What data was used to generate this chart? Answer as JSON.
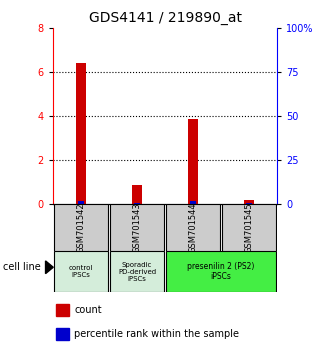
{
  "title": "GDS4141 / 219890_at",
  "samples": [
    "GSM701542",
    "GSM701543",
    "GSM701544",
    "GSM701545"
  ],
  "count_values": [
    6.4,
    0.85,
    3.85,
    0.18
  ],
  "percentile_values": [
    1.3,
    0.35,
    1.25,
    0.12
  ],
  "ylim_left": [
    0,
    8
  ],
  "ylim_right": [
    0,
    100
  ],
  "yticks_left": [
    0,
    2,
    4,
    6,
    8
  ],
  "yticks_right": [
    0,
    25,
    50,
    75,
    100
  ],
  "ytick_labels_right": [
    "0",
    "25",
    "50",
    "75",
    "100%"
  ],
  "count_color": "#cc0000",
  "percentile_color": "#0000cc",
  "sample_box_color": "#cccccc",
  "group_colors": [
    "#d4edda",
    "#d4edda",
    "#44ee44"
  ],
  "cell_line_label": "cell line",
  "legend_count": "count",
  "legend_percentile": "percentile rank within the sample",
  "title_fontsize": 10,
  "tick_fontsize": 7,
  "bar_width": 0.18
}
